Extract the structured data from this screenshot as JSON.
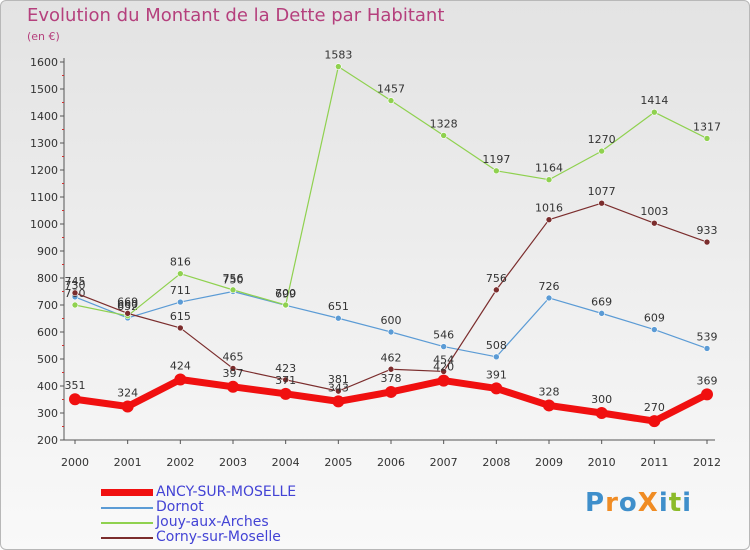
{
  "title": "Evolution du Montant de la Dette par Habitant",
  "unit": "(en €)",
  "logo": {
    "text": "ProXiti",
    "colors": [
      "#3f8fcb",
      "#f08c24",
      "#3f8fcb",
      "#f08c24",
      "#3f8fcb",
      "#8cbb2a",
      "#3f8fcb"
    ]
  },
  "chart_data": {
    "type": "line",
    "categories": [
      "2000",
      "2001",
      "2002",
      "2003",
      "2004",
      "2005",
      "2006",
      "2007",
      "2008",
      "2009",
      "2010",
      "2011",
      "2012"
    ],
    "ylim": [
      200,
      1600
    ],
    "yticks": [
      200,
      300,
      400,
      500,
      600,
      700,
      800,
      900,
      1000,
      1100,
      1200,
      1300,
      1400,
      1500,
      1600
    ],
    "grid": false,
    "legend_position": "bottom-left",
    "series": [
      {
        "name": "ANCY-SUR-MOSELLE",
        "color": "#f01010",
        "emphasis": true,
        "values": [
          351,
          324,
          424,
          397,
          371,
          343,
          378,
          420,
          391,
          328,
          300,
          270,
          369
        ]
      },
      {
        "name": "Dornot",
        "color": "#5b9bd5",
        "values": [
          730,
          652,
          711,
          750,
          699,
          651,
          600,
          546,
          508,
          726,
          669,
          609,
          539
        ]
      },
      {
        "name": "Jouy-aux-Arches",
        "color": "#8fd14f",
        "values": [
          700,
          660,
          816,
          756,
          700,
          1583,
          1457,
          1328,
          1197,
          1164,
          1270,
          1414,
          1317
        ]
      },
      {
        "name": "Corny-sur-Moselle",
        "color": "#7b2d2d",
        "values": [
          745,
          669,
          615,
          465,
          423,
          381,
          462,
          454,
          756,
          1016,
          1077,
          1003,
          933
        ]
      }
    ]
  }
}
